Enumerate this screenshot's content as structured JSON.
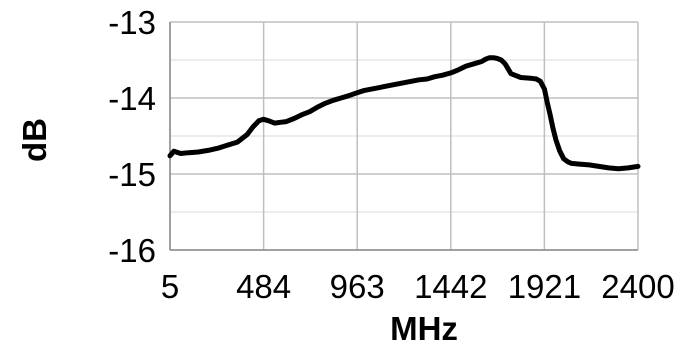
{
  "chart_data": {
    "type": "line",
    "title": "",
    "xlabel": "MHz",
    "ylabel": "dB",
    "x_ticks": [
      5,
      484,
      963,
      1442,
      1921,
      2400
    ],
    "y_ticks": [
      -13,
      -14,
      -15,
      -16
    ],
    "xlim": [
      5,
      2400
    ],
    "ylim": [
      -16,
      -13
    ],
    "grid": true,
    "legend": "none",
    "colors": {
      "series": "#000000",
      "grid": "#bfbfbf",
      "background": "#ffffff"
    },
    "series": [
      {
        "name": "",
        "x": [
          5,
          25,
          60,
          100,
          150,
          200,
          250,
          300,
          350,
          400,
          430,
          460,
          484,
          510,
          540,
          570,
          600,
          640,
          680,
          720,
          760,
          800,
          840,
          880,
          920,
          963,
          1000,
          1040,
          1080,
          1120,
          1160,
          1200,
          1240,
          1280,
          1320,
          1360,
          1400,
          1442,
          1480,
          1520,
          1560,
          1600,
          1620,
          1640,
          1660,
          1680,
          1700,
          1720,
          1750,
          1800,
          1850,
          1880,
          1900,
          1921,
          1935,
          1950,
          1965,
          1980,
          2000,
          2020,
          2040,
          2060,
          2100,
          2150,
          2200,
          2250,
          2300,
          2350,
          2400
        ],
        "y": [
          -14.76,
          -14.7,
          -14.73,
          -14.72,
          -14.71,
          -14.69,
          -14.66,
          -14.62,
          -14.58,
          -14.48,
          -14.38,
          -14.3,
          -14.28,
          -14.3,
          -14.33,
          -14.32,
          -14.31,
          -14.27,
          -14.22,
          -14.18,
          -14.12,
          -14.07,
          -14.03,
          -14.0,
          -13.97,
          -13.93,
          -13.9,
          -13.88,
          -13.86,
          -13.84,
          -13.82,
          -13.8,
          -13.78,
          -13.76,
          -13.75,
          -13.72,
          -13.7,
          -13.67,
          -13.63,
          -13.58,
          -13.55,
          -13.52,
          -13.49,
          -13.47,
          -13.47,
          -13.48,
          -13.5,
          -13.55,
          -13.68,
          -13.73,
          -13.74,
          -13.75,
          -13.78,
          -13.88,
          -14.05,
          -14.22,
          -14.4,
          -14.55,
          -14.7,
          -14.8,
          -14.84,
          -14.86,
          -14.87,
          -14.88,
          -14.9,
          -14.92,
          -14.93,
          -14.92,
          -14.9
        ]
      }
    ]
  }
}
